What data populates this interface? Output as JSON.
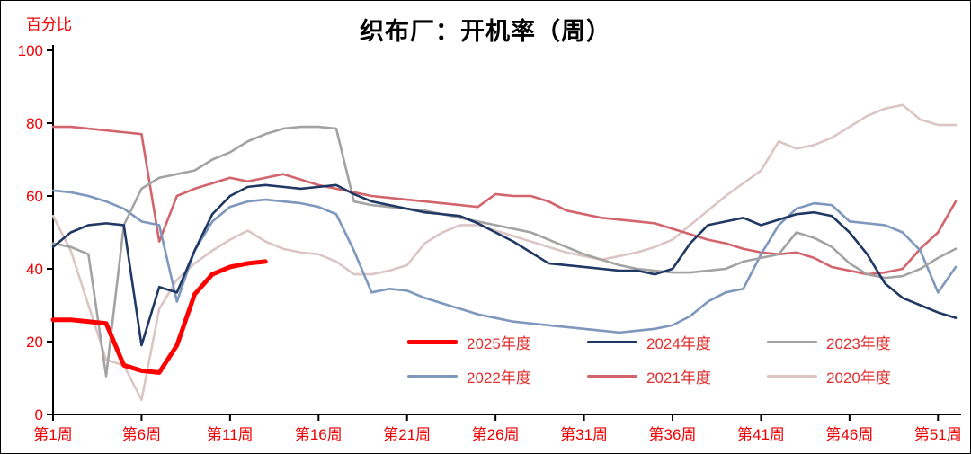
{
  "chart_data": {
    "type": "line",
    "title": "织布厂：开机率（周）",
    "ylabel": "百分比",
    "ylim": [
      0,
      100
    ],
    "yticks": [
      0,
      20,
      40,
      60,
      80,
      100
    ],
    "x_range": [
      1,
      52
    ],
    "xtick_weeks": [
      1,
      6,
      11,
      16,
      21,
      26,
      31,
      36,
      41,
      46,
      51
    ],
    "xtick_labels": [
      "第1周",
      "第6周",
      "第11周",
      "第16周",
      "第21周",
      "第26周",
      "第31周",
      "第36周",
      "第41周",
      "第46周",
      "第51周"
    ],
    "axis_label_color": "#f00000",
    "axis_line_color": "#000000",
    "grid": false,
    "legend_position": "inside-bottom-center",
    "series": [
      {
        "name": "2025年度",
        "color": "#ff0000",
        "width": 5,
        "start_week": 1,
        "values": [
          26,
          26,
          25.5,
          25,
          13.5,
          12,
          11.5,
          19,
          33,
          38.5,
          40.5,
          41.5,
          42
        ]
      },
      {
        "name": "2024年度",
        "color": "#1f3864",
        "width": 2.6,
        "start_week": 1,
        "values": [
          46,
          50,
          52,
          52.5,
          52,
          19,
          35,
          33.5,
          45,
          55,
          60,
          62.5,
          63,
          62.5,
          62,
          62.5,
          63,
          60.5,
          58.5,
          57.5,
          56.5,
          55.5,
          55,
          54.5,
          52.5,
          50,
          47.5,
          44.5,
          41.5,
          41,
          40.5,
          40,
          39.5,
          39.5,
          38.5,
          40,
          47,
          52,
          53,
          54,
          52,
          53.5,
          55,
          55.5,
          54.5,
          50,
          44,
          36,
          32,
          30,
          28,
          26.5
        ]
      },
      {
        "name": "2023年度",
        "color": "#a3a3a3",
        "width": 2.6,
        "start_week": 1,
        "values": [
          47,
          46,
          44,
          10.5,
          52,
          62,
          65,
          66,
          67,
          70,
          72,
          75,
          77,
          78.5,
          79,
          79,
          78.5,
          58.5,
          57.5,
          57,
          56.5,
          56,
          55,
          54,
          53,
          52,
          51,
          50,
          48,
          46,
          44,
          42.5,
          41,
          40,
          39.5,
          39,
          39,
          39.5,
          40,
          42,
          43,
          44,
          50,
          48.5,
          46,
          41.5,
          38.5,
          37.5,
          38,
          40,
          43,
          45.5
        ]
      },
      {
        "name": "2022年度",
        "color": "#7d97bd",
        "width": 2.6,
        "start_week": 1,
        "values": [
          61.5,
          61,
          60,
          58.5,
          56.5,
          53,
          52,
          31,
          45,
          53,
          57,
          58.5,
          59,
          58.5,
          58,
          57,
          55,
          45,
          33.5,
          34.5,
          34,
          32,
          30.5,
          29,
          27.5,
          26.5,
          25.5,
          25,
          24.5,
          24,
          23.5,
          23,
          22.5,
          23,
          23.5,
          24.5,
          27,
          31,
          33.5,
          34.5,
          44,
          52,
          56.5,
          58,
          57.5,
          53,
          52.5,
          52,
          50,
          45,
          33.5,
          40.5
        ]
      },
      {
        "name": "2021年度",
        "color": "#d2646c",
        "width": 2.6,
        "start_week": 1,
        "values": [
          79,
          79,
          78.5,
          78,
          77.5,
          77,
          47.5,
          60,
          62,
          63.5,
          65,
          64,
          65,
          66,
          64.5,
          63,
          62,
          61,
          60,
          59.5,
          59,
          58.5,
          58,
          57.5,
          57,
          60.5,
          60,
          60,
          58.5,
          56,
          55,
          54,
          53.5,
          53,
          52.5,
          51,
          49.5,
          48,
          47,
          45.5,
          44.5,
          44,
          44.5,
          43,
          40.5,
          39.5,
          38.5,
          39,
          40,
          45.5,
          50,
          58.5
        ]
      },
      {
        "name": "2020年度",
        "color": "#dcc5c5",
        "width": 2.6,
        "start_week": 1,
        "values": [
          54.5,
          45,
          30,
          15,
          13.5,
          4,
          29,
          37,
          41.5,
          45,
          48,
          50.5,
          47.5,
          45.5,
          44.5,
          44,
          42,
          38.5,
          38.5,
          39.5,
          41,
          47,
          50,
          52,
          52,
          50.5,
          49,
          47.5,
          46,
          44.5,
          43.5,
          42.5,
          43.5,
          44.5,
          46,
          48,
          52,
          56,
          60,
          63.5,
          67,
          75,
          73,
          74,
          76,
          79,
          82,
          84,
          85,
          81,
          79.5,
          79.5
        ]
      }
    ]
  }
}
